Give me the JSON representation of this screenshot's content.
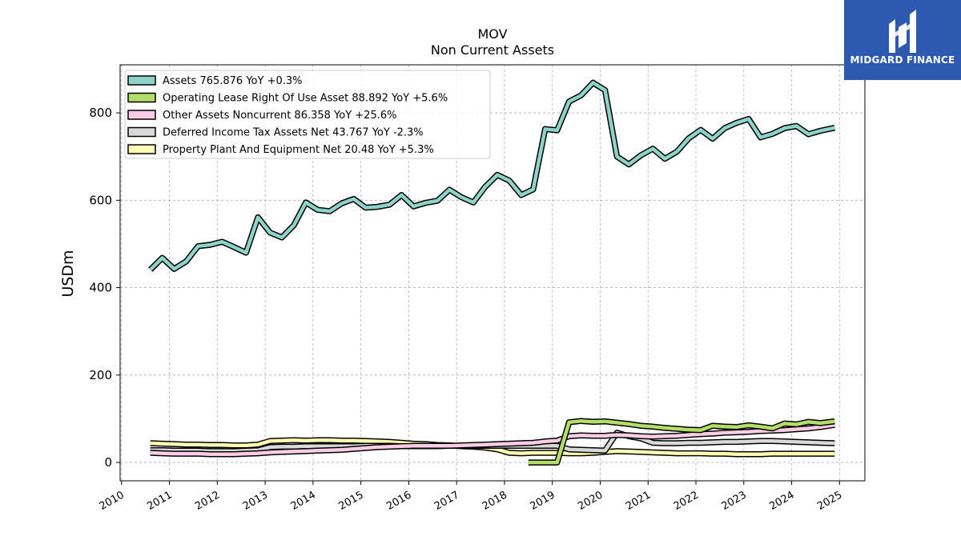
{
  "chart_data": {
    "type": "line",
    "title": "MOV",
    "subtitle": "Non Current  Assets",
    "ylabel": "USDm",
    "xlabel": "",
    "ylim": [
      -42,
      910
    ],
    "xlim": [
      2009.97,
      2025.53
    ],
    "yticks": [
      0,
      200,
      400,
      600,
      800
    ],
    "xticks": [
      2010,
      2011,
      2012,
      2013,
      2014,
      2015,
      2016,
      2017,
      2018,
      2019,
      2020,
      2021,
      2022,
      2023,
      2024,
      2025
    ],
    "grid": true,
    "legend_position": "top-left",
    "series": [
      {
        "name": "Assets  765.876 YoY +0.3%",
        "color": "#8dd3c7",
        "x": [
          2010.6,
          2010.85,
          2011.1,
          2011.35,
          2011.6,
          2011.85,
          2012.1,
          2012.35,
          2012.6,
          2012.85,
          2013.1,
          2013.35,
          2013.6,
          2013.85,
          2014.1,
          2014.35,
          2014.6,
          2014.85,
          2015.1,
          2015.35,
          2015.6,
          2015.85,
          2016.1,
          2016.35,
          2016.6,
          2016.85,
          2017.1,
          2017.35,
          2017.6,
          2017.85,
          2018.1,
          2018.35,
          2018.6,
          2018.85,
          2019.1,
          2019.35,
          2019.6,
          2019.85,
          2020.1,
          2020.35,
          2020.6,
          2020.85,
          2021.1,
          2021.35,
          2021.6,
          2021.85,
          2022.1,
          2022.35,
          2022.6,
          2022.85,
          2023.1,
          2023.35,
          2023.6,
          2023.85,
          2024.1,
          2024.35,
          2024.6,
          2024.9
        ],
        "values": [
          441,
          468,
          443,
          460,
          495,
          498,
          505,
          493,
          480,
          561,
          526,
          515,
          543,
          595,
          578,
          575,
          593,
          603,
          583,
          585,
          590,
          612,
          586,
          594,
          599,
          624,
          607,
          595,
          631,
          658,
          645,
          612,
          625,
          763,
          760,
          826,
          840,
          869,
          852,
          700,
          682,
          703,
          718,
          695,
          711,
          742,
          761,
          741,
          765,
          777,
          786,
          744,
          752,
          765,
          770,
          751,
          759,
          766
        ]
      },
      {
        "name": "Operating Lease Right Of Use Asset  88.892 YoY +5.6%",
        "color": "#b3de69",
        "x": [
          2018.5,
          2018.75,
          2019.1,
          2019.35,
          2019.6,
          2019.85,
          2020.1,
          2020.35,
          2020.6,
          2020.85,
          2021.1,
          2021.35,
          2021.6,
          2021.85,
          2022.1,
          2022.35,
          2022.6,
          2022.85,
          2023.1,
          2023.35,
          2023.6,
          2023.85,
          2024.1,
          2024.35,
          2024.6,
          2024.9
        ],
        "values": [
          0,
          0,
          0,
          92,
          95,
          93,
          94,
          91,
          88,
          84,
          82,
          79,
          77,
          75,
          74,
          84,
          82,
          81,
          85,
          82,
          78,
          89,
          87,
          93,
          90,
          94
        ]
      },
      {
        "name": "Other Assets Noncurrent  86.358 YoY +25.6%",
        "color": "#fccde5",
        "x": [
          2010.6,
          2010.85,
          2011.1,
          2011.35,
          2011.6,
          2011.85,
          2012.1,
          2012.35,
          2012.6,
          2012.85,
          2013.1,
          2013.35,
          2013.6,
          2013.85,
          2014.1,
          2014.35,
          2014.6,
          2014.85,
          2015.1,
          2015.35,
          2015.6,
          2015.85,
          2016.1,
          2016.35,
          2016.6,
          2016.85,
          2017.1,
          2017.35,
          2017.6,
          2017.85,
          2018.1,
          2018.35,
          2018.6,
          2018.85,
          2019.1,
          2019.35,
          2019.6,
          2019.85,
          2020.1,
          2020.35,
          2020.6,
          2020.85,
          2021.1,
          2021.35,
          2021.6,
          2021.85,
          2022.1,
          2022.35,
          2022.6,
          2022.85,
          2023.1,
          2023.35,
          2023.6,
          2023.85,
          2024.1,
          2024.35,
          2024.6,
          2024.9
        ],
        "values": [
          22,
          21,
          20,
          20,
          20,
          19,
          19,
          19,
          20,
          21,
          23,
          24,
          25,
          26,
          27,
          28,
          29,
          31,
          33,
          35,
          36,
          37,
          38,
          38,
          38,
          38,
          39,
          40,
          41,
          42,
          43,
          44,
          45,
          48,
          50,
          60,
          62,
          61,
          61,
          63,
          62,
          60,
          59,
          60,
          61,
          63,
          65,
          66,
          68,
          69,
          70,
          72,
          73,
          74,
          76,
          78,
          81,
          86
        ]
      },
      {
        "name": "Deferred Income Tax Assets Net  43.767 YoY -2.3%",
        "color": "#d9d9d9",
        "x": [
          2010.6,
          2010.85,
          2011.1,
          2011.35,
          2011.6,
          2011.85,
          2012.1,
          2012.35,
          2012.6,
          2012.85,
          2013.1,
          2013.35,
          2013.6,
          2013.85,
          2014.1,
          2014.35,
          2014.6,
          2014.85,
          2015.1,
          2015.35,
          2015.6,
          2015.85,
          2016.1,
          2016.35,
          2016.6,
          2016.85,
          2017.1,
          2017.35,
          2017.6,
          2017.85,
          2018.1,
          2018.35,
          2018.6,
          2018.85,
          2019.1,
          2019.35,
          2019.6,
          2019.85,
          2020.1,
          2020.35,
          2020.6,
          2020.85,
          2021.1,
          2021.35,
          2021.6,
          2021.85,
          2022.1,
          2022.35,
          2022.6,
          2022.85,
          2023.1,
          2023.35,
          2023.6,
          2023.85,
          2024.1,
          2024.35,
          2024.6,
          2024.9
        ],
        "values": [
          28,
          28,
          27,
          27,
          27,
          26,
          26,
          26,
          27,
          28,
          35,
          36,
          36,
          37,
          37,
          37,
          37,
          37,
          38,
          38,
          38,
          37,
          37,
          37,
          37,
          38,
          38,
          38,
          38,
          38,
          38,
          38,
          38,
          38,
          38,
          30,
          29,
          28,
          27,
          68,
          60,
          55,
          45,
          44,
          44,
          45,
          45,
          46,
          47,
          47,
          48,
          49,
          49,
          48,
          47,
          46,
          45,
          44
        ]
      },
      {
        "name": "Property Plant And Equipment Net  20.48 YoY +5.3%",
        "color": "#ffffb3",
        "x": [
          2010.6,
          2010.85,
          2011.1,
          2011.35,
          2011.6,
          2011.85,
          2012.1,
          2012.35,
          2012.6,
          2012.85,
          2013.1,
          2013.35,
          2013.6,
          2013.85,
          2014.1,
          2014.35,
          2014.6,
          2014.85,
          2015.1,
          2015.35,
          2015.6,
          2015.85,
          2016.1,
          2016.35,
          2016.6,
          2016.85,
          2017.1,
          2017.35,
          2017.6,
          2017.85,
          2018.1,
          2018.35,
          2018.6,
          2018.85,
          2019.1,
          2019.35,
          2019.6,
          2019.85,
          2020.1,
          2020.35,
          2020.6,
          2020.85,
          2021.1,
          2021.35,
          2021.6,
          2021.85,
          2022.1,
          2022.35,
          2022.6,
          2022.85,
          2023.1,
          2023.35,
          2023.6,
          2023.85,
          2024.1,
          2024.35,
          2024.6,
          2024.9
        ],
        "values": [
          44,
          43,
          42,
          41,
          41,
          40,
          40,
          39,
          39,
          41,
          49,
          50,
          51,
          50,
          51,
          51,
          50,
          50,
          49,
          48,
          47,
          45,
          43,
          42,
          40,
          39,
          37,
          36,
          34,
          30,
          22,
          21,
          22,
          22,
          22,
          21,
          21,
          22,
          24,
          26,
          25,
          24,
          23,
          22,
          21,
          21,
          21,
          20,
          20,
          19,
          19,
          19,
          20,
          20,
          20,
          20,
          20,
          20
        ]
      }
    ]
  },
  "logo": {
    "text": "MIDGARD FINANCE",
    "background": "#2e59b0"
  }
}
